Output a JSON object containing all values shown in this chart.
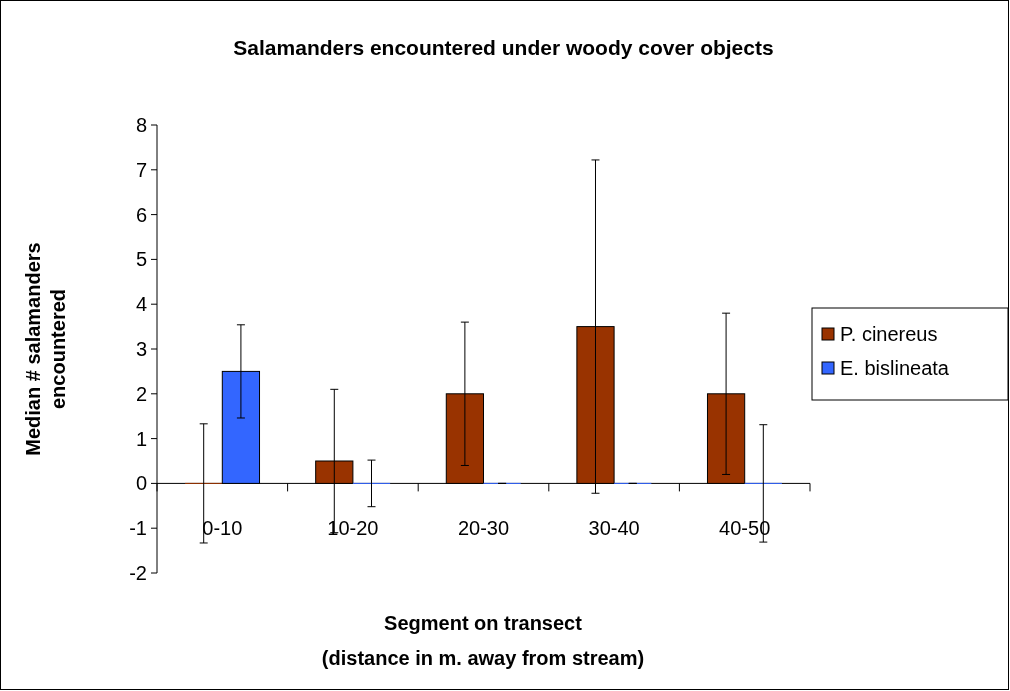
{
  "chart_data": {
    "type": "bar",
    "title": "Salamanders encountered under woody cover objects",
    "xlabel": "Segment on transect\n(distance in m. away from stream)",
    "ylabel": "Median # salamanders\nencountered",
    "categories": [
      "0-10",
      "10-20",
      "20-30",
      "30-40",
      "40-50"
    ],
    "series": [
      {
        "name": "P. cinereus",
        "color": "#993300",
        "values": [
          0,
          0.5,
          2,
          3.5,
          2
        ],
        "errors": [
          1.33,
          1.6,
          1.6,
          3.72,
          1.8
        ]
      },
      {
        "name": "E. bislineata",
        "color": "#3366ff",
        "values": [
          2.5,
          0,
          0,
          0,
          0
        ],
        "errors": [
          1.04,
          0.52,
          0,
          0,
          1.31
        ]
      }
    ],
    "ylim": [
      -2,
      8
    ],
    "yticks": [
      -2,
      -1,
      0,
      1,
      2,
      3,
      4,
      5,
      6,
      7,
      8
    ],
    "grid": false,
    "legend": "right"
  }
}
